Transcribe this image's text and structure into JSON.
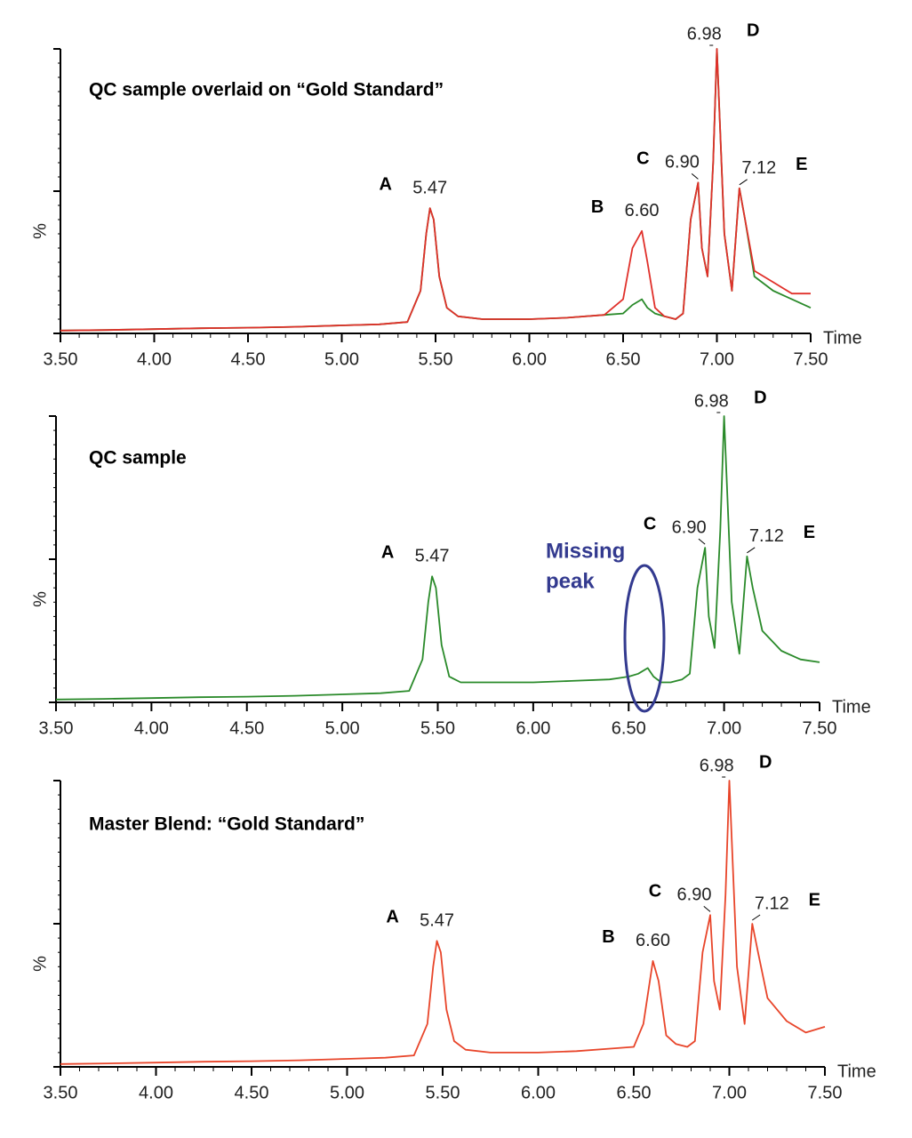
{
  "chart_data": [
    {
      "type": "line",
      "title": "QC sample overlaid on “Gold Standard”",
      "xlabel": "Time",
      "ylabel": "%",
      "x": [
        3.5,
        3.75,
        4.0,
        4.25,
        4.5,
        4.75,
        5.0,
        5.2,
        5.35,
        5.42,
        5.45,
        5.47,
        5.49,
        5.52,
        5.56,
        5.62,
        5.75,
        6.0,
        6.2,
        6.4,
        6.5,
        6.55,
        6.6,
        6.63,
        6.67,
        6.72,
        6.78,
        6.82,
        6.86,
        6.9,
        6.92,
        6.95,
        6.98,
        7.0,
        7.04,
        7.08,
        7.12,
        7.15,
        7.2,
        7.3,
        7.4,
        7.5
      ],
      "series": [
        {
          "color": "#2a8a2a",
          "values": [
            1,
            1.2,
            1.5,
            1.8,
            2,
            2.3,
            2.8,
            3.2,
            4,
            15,
            35,
            44,
            40,
            20,
            9,
            6,
            5,
            5,
            5.5,
            6.5,
            7,
            10,
            12,
            9,
            7,
            6,
            5,
            7,
            40,
            53,
            30,
            20,
            60,
            100,
            35,
            15,
            51,
            40,
            20,
            15,
            12,
            9
          ]
        },
        {
          "color": "#e0302a",
          "values": [
            1,
            1.2,
            1.5,
            1.8,
            2,
            2.3,
            2.8,
            3.2,
            4,
            15,
            35,
            44,
            40,
            20,
            9,
            6,
            5,
            5,
            5.5,
            6.5,
            12,
            30,
            36,
            25,
            9,
            6,
            5,
            7,
            40,
            53,
            30,
            20,
            60,
            100,
            35,
            15,
            51,
            40,
            22,
            18,
            14,
            14
          ]
        }
      ],
      "xlim": [
        3.5,
        7.5
      ],
      "ylim": [
        0,
        100
      ],
      "yticks": [
        0,
        50,
        100
      ],
      "xticks": [
        {
          "value": 3.5,
          "label": "3.50"
        },
        {
          "value": 4.0,
          "label": "4.00"
        },
        {
          "value": 4.5,
          "label": "4.50"
        },
        {
          "value": 5.0,
          "label": "5.00"
        },
        {
          "value": 5.5,
          "label": "5.50"
        },
        {
          "value": 6.0,
          "label": "6.00"
        },
        {
          "value": 6.5,
          "label": "6.50"
        },
        {
          "value": 7.0,
          "label": "7.00"
        },
        {
          "value": 7.5,
          "label": "7.50"
        }
      ],
      "peaks": [
        {
          "letter": "A",
          "time": {
            "value": 5.47,
            "label": "5.47"
          }
        },
        {
          "letter": "B",
          "time": {
            "value": 6.6,
            "label": "6.60"
          }
        },
        {
          "letter": "C",
          "time": {
            "value": 6.9,
            "label": "6.90"
          }
        },
        {
          "letter": "D",
          "time": {
            "value": 6.98,
            "label": "6.98"
          }
        },
        {
          "letter": "E",
          "time": {
            "value": 7.12,
            "label": "7.12"
          }
        }
      ]
    },
    {
      "type": "line",
      "title": "QC sample",
      "xlabel": "Time",
      "ylabel": "%",
      "x": [
        3.5,
        3.75,
        4.0,
        4.25,
        4.5,
        4.75,
        5.0,
        5.2,
        5.35,
        5.42,
        5.45,
        5.47,
        5.49,
        5.52,
        5.56,
        5.62,
        5.75,
        6.0,
        6.2,
        6.4,
        6.5,
        6.55,
        6.6,
        6.63,
        6.67,
        6.72,
        6.78,
        6.82,
        6.86,
        6.9,
        6.92,
        6.95,
        6.98,
        7.0,
        7.04,
        7.08,
        7.12,
        7.15,
        7.2,
        7.3,
        7.4,
        7.5
      ],
      "series": [
        {
          "color": "#2a8a2a",
          "values": [
            1,
            1.2,
            1.5,
            1.8,
            2,
            2.3,
            2.8,
            3.2,
            4,
            15,
            35,
            44,
            40,
            20,
            9,
            7,
            7,
            7,
            7.5,
            8,
            9,
            10,
            12,
            9,
            7,
            7,
            8,
            10,
            40,
            54,
            30,
            19,
            60,
            100,
            35,
            17,
            51,
            40,
            25,
            18,
            15,
            14
          ]
        }
      ],
      "xlim": [
        3.5,
        7.5
      ],
      "ylim": [
        0,
        100
      ],
      "yticks": [
        0,
        50,
        100
      ],
      "xticks": [
        {
          "value": 3.5,
          "label": "3.50"
        },
        {
          "value": 4.0,
          "label": "4.00"
        },
        {
          "value": 4.5,
          "label": "4.50"
        },
        {
          "value": 5.0,
          "label": "5.00"
        },
        {
          "value": 5.5,
          "label": "5.50"
        },
        {
          "value": 6.0,
          "label": "6.00"
        },
        {
          "value": 6.5,
          "label": "6.50"
        },
        {
          "value": 7.0,
          "label": "7.00"
        },
        {
          "value": 7.5,
          "label": "7.50"
        }
      ],
      "peaks": [
        {
          "letter": "A",
          "time": {
            "value": 5.47,
            "label": "5.47"
          }
        },
        {
          "letter": "C",
          "time": {
            "value": 6.9,
            "label": "6.90"
          }
        },
        {
          "letter": "D",
          "time": {
            "value": 6.98,
            "label": "6.98"
          }
        },
        {
          "letter": "E",
          "time": {
            "value": 7.12,
            "label": "7.12"
          }
        }
      ],
      "annotation_lines": [
        "Missing",
        "peak"
      ]
    },
    {
      "type": "line",
      "title": "Master Blend: “Gold Standard”",
      "xlabel": "Time",
      "ylabel": "%",
      "x": [
        3.5,
        3.75,
        4.0,
        4.25,
        4.5,
        4.75,
        5.0,
        5.2,
        5.35,
        5.42,
        5.45,
        5.47,
        5.49,
        5.52,
        5.56,
        5.62,
        5.75,
        6.0,
        6.2,
        6.4,
        6.5,
        6.55,
        6.6,
        6.63,
        6.67,
        6.72,
        6.78,
        6.82,
        6.86,
        6.9,
        6.92,
        6.95,
        6.98,
        7.0,
        7.04,
        7.08,
        7.12,
        7.15,
        7.2,
        7.3,
        7.4,
        7.5
      ],
      "series": [
        {
          "color": "#e8452a",
          "values": [
            1,
            1.2,
            1.5,
            1.8,
            2,
            2.3,
            2.8,
            3.2,
            4,
            15,
            35,
            44,
            40,
            20,
            9,
            6,
            5,
            5,
            5.5,
            6.5,
            7,
            15,
            37,
            30,
            11,
            8,
            7,
            9,
            40,
            53,
            30,
            20,
            60,
            100,
            35,
            15,
            50,
            40,
            24,
            16,
            12,
            14
          ]
        }
      ],
      "xlim": [
        3.5,
        7.5
      ],
      "ylim": [
        0,
        100
      ],
      "yticks": [
        0,
        50,
        100
      ],
      "xticks": [
        {
          "value": 3.5,
          "label": "3.50"
        },
        {
          "value": 4.0,
          "label": "4.00"
        },
        {
          "value": 4.5,
          "label": "4.50"
        },
        {
          "value": 5.0,
          "label": "5.00"
        },
        {
          "value": 5.5,
          "label": "5.50"
        },
        {
          "value": 6.0,
          "label": "6.00"
        },
        {
          "value": 6.5,
          "label": "6.50"
        },
        {
          "value": 7.0,
          "label": "7.00"
        },
        {
          "value": 7.5,
          "label": "7.50"
        }
      ],
      "peaks": [
        {
          "letter": "A",
          "time": {
            "value": 5.47,
            "label": "5.47"
          }
        },
        {
          "letter": "B",
          "time": {
            "value": 6.6,
            "label": "6.60"
          }
        },
        {
          "letter": "C",
          "time": {
            "value": 6.9,
            "label": "6.90"
          }
        },
        {
          "letter": "D",
          "time": {
            "value": 6.98,
            "label": "6.98"
          }
        },
        {
          "letter": "E",
          "time": {
            "value": 7.12,
            "label": "7.12"
          }
        }
      ]
    }
  ]
}
